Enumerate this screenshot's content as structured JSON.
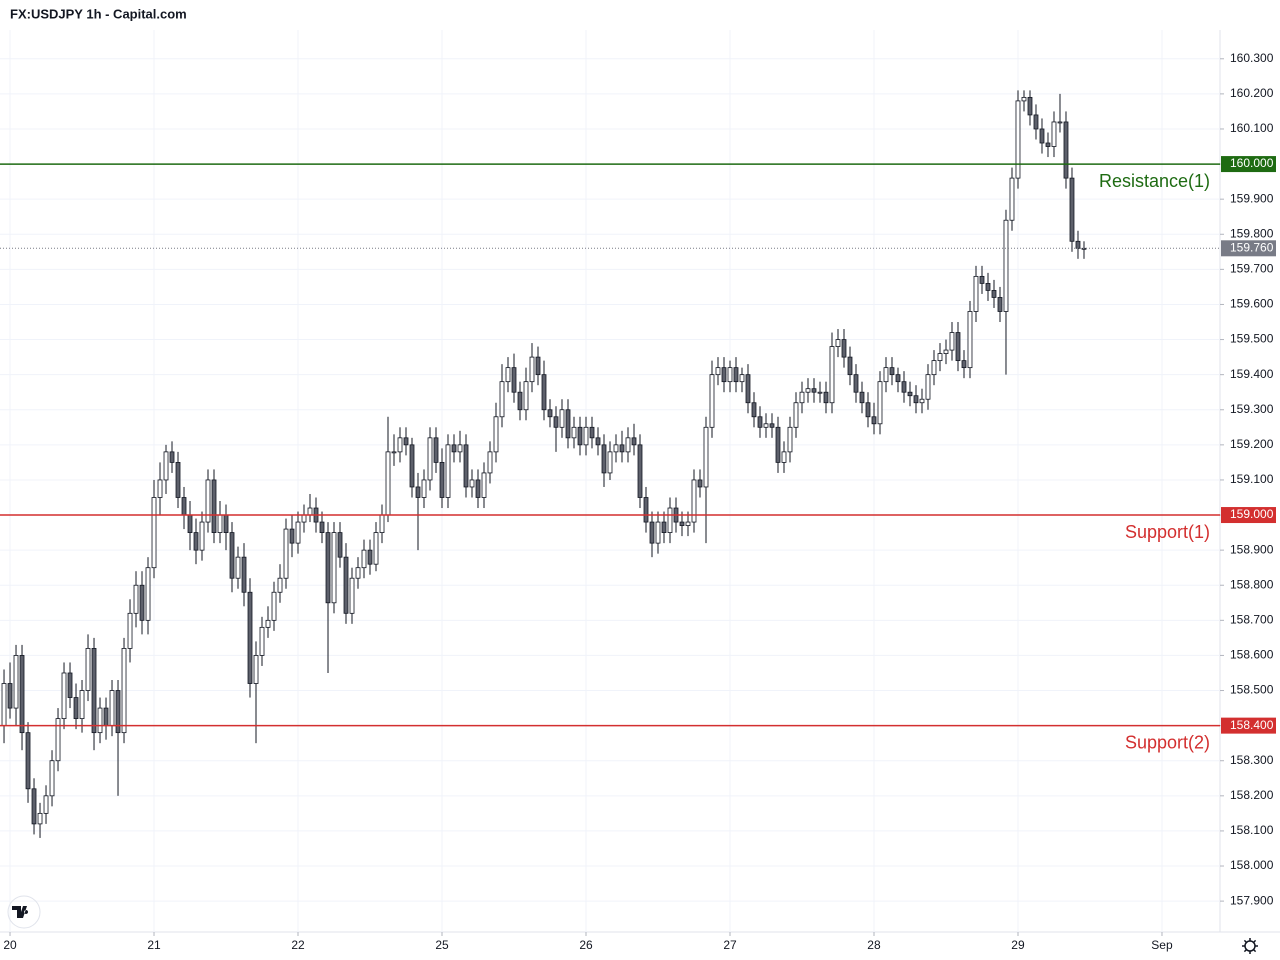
{
  "chart_data": {
    "type": "candlestick",
    "title": "FX:USDJPY 1h - Capital.com",
    "x": [
      0,
      1,
      2,
      3,
      4,
      5,
      6,
      7,
      8,
      9,
      10,
      11,
      12,
      13,
      14,
      15,
      16,
      17,
      18,
      19,
      20,
      21,
      22,
      23,
      24,
      25,
      26,
      27,
      28,
      29,
      30,
      31,
      32,
      33,
      34,
      35,
      36,
      37,
      38,
      39,
      40,
      41,
      42,
      43,
      44,
      45,
      46,
      47,
      48,
      49,
      50,
      51,
      52,
      53,
      54,
      55,
      56,
      57,
      58,
      59,
      60,
      61,
      62,
      63,
      64,
      65,
      66,
      67,
      68,
      69,
      70,
      71,
      72,
      73,
      74,
      75,
      76,
      77,
      78,
      79,
      80,
      81,
      82,
      83,
      84,
      85,
      86,
      87,
      88,
      89,
      90,
      91,
      92,
      93,
      94,
      95,
      96,
      97,
      98,
      99,
      100,
      101,
      102,
      103,
      104,
      105,
      106,
      107,
      108,
      109,
      110,
      111,
      112,
      113,
      114,
      115,
      116,
      117,
      118,
      119,
      120,
      121,
      122,
      123,
      124,
      125,
      126,
      127,
      128,
      129,
      130,
      131,
      132,
      133,
      134,
      135,
      136,
      137,
      138,
      139,
      140,
      141,
      142,
      143,
      144,
      145,
      146,
      147,
      148,
      149,
      150,
      151,
      152,
      153,
      154,
      155,
      156,
      157,
      158,
      159,
      160,
      161,
      162,
      163,
      164,
      165,
      166,
      167,
      168,
      169,
      170,
      171,
      172,
      173,
      174,
      175,
      176,
      177,
      178,
      179,
      180
    ],
    "open": [
      158.4,
      158.52,
      158.45,
      158.6,
      158.38,
      158.22,
      158.12,
      158.15,
      158.2,
      158.3,
      158.42,
      158.55,
      158.48,
      158.42,
      158.5,
      158.62,
      158.38,
      158.45,
      158.4,
      158.5,
      158.38,
      158.62,
      158.72,
      158.8,
      158.7,
      158.85,
      159.05,
      159.1,
      159.18,
      159.15,
      159.05,
      159.0,
      158.95,
      158.9,
      158.98,
      159.1,
      158.95,
      159.0,
      158.95,
      158.82,
      158.88,
      158.78,
      158.52,
      158.6,
      158.68,
      158.7,
      158.78,
      158.82,
      158.96,
      158.92,
      158.98,
      159.0,
      159.02,
      158.98,
      158.95,
      158.75,
      158.95,
      158.88,
      158.72,
      158.82,
      158.85,
      158.9,
      158.86,
      158.95,
      159.0,
      159.18,
      159.18,
      159.22,
      159.2,
      159.08,
      159.05,
      159.1,
      159.22,
      159.15,
      159.05,
      159.2,
      159.18,
      159.2,
      159.08,
      159.1,
      159.05,
      159.12,
      159.18,
      159.28,
      159.38,
      159.42,
      159.35,
      159.3,
      159.38,
      159.45,
      159.4,
      159.3,
      159.28,
      159.25,
      159.3,
      159.22,
      159.25,
      159.2,
      159.25,
      159.22,
      159.2,
      159.12,
      159.18,
      159.2,
      159.18,
      159.22,
      159.2,
      159.05,
      158.98,
      158.92,
      158.98,
      158.95,
      159.02,
      158.98,
      158.97,
      158.98,
      159.1,
      159.08,
      159.25,
      159.4,
      159.42,
      159.38,
      159.42,
      159.38,
      159.4,
      159.32,
      159.28,
      159.25,
      159.26,
      159.25,
      159.15,
      159.18,
      159.25,
      159.32,
      159.35,
      159.36,
      159.35,
      159.35,
      159.32,
      159.48,
      159.5,
      159.45,
      159.4,
      159.35,
      159.32,
      159.28,
      159.26,
      159.38,
      159.42,
      159.4,
      159.38,
      159.35,
      159.34,
      159.32,
      159.33,
      159.4,
      159.44,
      159.46,
      159.47,
      159.52,
      159.44,
      159.42,
      159.58,
      159.68,
      159.66,
      159.64,
      159.62,
      159.58,
      159.84,
      159.96,
      160.18,
      160.19,
      160.14,
      160.1,
      160.06,
      160.05,
      160.12,
      160.12,
      159.96,
      159.78,
      159.76
    ],
    "high": [
      158.56,
      158.58,
      158.63,
      158.63,
      158.41,
      158.25,
      158.18,
      158.23,
      158.33,
      158.45,
      158.58,
      158.58,
      158.52,
      158.53,
      158.66,
      158.65,
      158.48,
      158.48,
      158.53,
      158.53,
      158.65,
      158.76,
      158.84,
      158.84,
      158.88,
      159.1,
      159.15,
      159.2,
      159.21,
      159.18,
      159.08,
      159.04,
      158.99,
      159.01,
      159.13,
      159.13,
      159.04,
      159.03,
      158.98,
      158.91,
      158.92,
      158.82,
      158.64,
      158.71,
      158.74,
      158.81,
      158.86,
      158.99,
      159.0,
      159.01,
      159.03,
      159.06,
      159.05,
      159.01,
      158.98,
      158.98,
      158.98,
      158.92,
      158.85,
      158.88,
      158.93,
      158.93,
      158.98,
      159.03,
      159.28,
      159.23,
      159.25,
      159.25,
      159.22,
      159.12,
      159.13,
      159.25,
      159.25,
      159.19,
      159.23,
      159.23,
      159.24,
      159.23,
      159.13,
      159.13,
      159.15,
      159.21,
      159.32,
      159.43,
      159.45,
      159.46,
      159.38,
      159.42,
      159.49,
      159.48,
      159.44,
      159.33,
      159.31,
      159.33,
      159.33,
      159.28,
      159.28,
      159.28,
      159.28,
      159.25,
      159.23,
      159.21,
      159.23,
      159.24,
      159.25,
      159.26,
      159.23,
      159.08,
      159.01,
      159.01,
      159.01,
      159.05,
      159.05,
      159.01,
      159.01,
      159.13,
      159.13,
      159.28,
      159.44,
      159.45,
      159.45,
      159.44,
      159.45,
      159.42,
      159.43,
      159.35,
      159.31,
      159.29,
      159.29,
      159.28,
      159.21,
      159.28,
      159.35,
      159.38,
      159.39,
      159.39,
      159.38,
      159.38,
      159.52,
      159.53,
      159.53,
      159.48,
      159.43,
      159.38,
      159.35,
      159.32,
      159.41,
      159.45,
      159.45,
      159.42,
      159.41,
      159.38,
      159.37,
      159.36,
      159.43,
      159.47,
      159.49,
      159.5,
      159.55,
      159.55,
      159.47,
      159.61,
      159.71,
      159.71,
      159.69,
      159.67,
      159.65,
      159.87,
      159.99,
      160.21,
      160.21,
      160.21,
      160.17,
      160.13,
      160.09,
      160.15,
      160.2,
      160.15,
      159.99,
      159.81,
      159.78
    ],
    "low": [
      158.35,
      158.42,
      158.4,
      158.33,
      158.18,
      158.09,
      158.08,
      158.12,
      158.17,
      158.27,
      158.39,
      158.45,
      158.39,
      158.38,
      158.47,
      158.33,
      158.35,
      158.36,
      158.37,
      158.2,
      158.35,
      158.58,
      158.68,
      158.66,
      158.66,
      158.82,
      159.0,
      159.06,
      159.12,
      159.02,
      158.96,
      158.9,
      158.86,
      158.87,
      158.95,
      158.92,
      158.92,
      158.9,
      158.78,
      158.79,
      158.74,
      158.48,
      158.35,
      158.57,
      158.65,
      158.67,
      158.75,
      158.79,
      158.88,
      158.89,
      158.95,
      158.98,
      158.95,
      158.92,
      158.55,
      158.72,
      158.85,
      158.69,
      158.69,
      158.79,
      158.82,
      158.83,
      158.84,
      158.92,
      158.98,
      159.14,
      159.15,
      159.17,
      159.05,
      158.9,
      159.02,
      159.07,
      159.12,
      159.02,
      159.02,
      159.15,
      159.15,
      159.05,
      159.05,
      159.02,
      159.02,
      159.09,
      159.15,
      159.25,
      159.35,
      159.32,
      159.27,
      159.27,
      159.35,
      159.37,
      159.27,
      159.25,
      159.18,
      159.22,
      159.19,
      159.19,
      159.17,
      159.17,
      159.19,
      159.17,
      159.08,
      159.1,
      159.15,
      159.15,
      159.15,
      159.17,
      159.02,
      158.95,
      158.88,
      158.89,
      158.92,
      158.92,
      158.95,
      158.94,
      158.94,
      158.95,
      159.05,
      158.92,
      159.22,
      159.37,
      159.35,
      159.35,
      159.35,
      159.35,
      159.29,
      159.25,
      159.22,
      159.22,
      159.22,
      159.12,
      159.12,
      159.15,
      159.22,
      159.29,
      159.32,
      159.32,
      159.32,
      159.29,
      159.29,
      159.45,
      159.42,
      159.37,
      159.32,
      159.29,
      159.25,
      159.23,
      159.23,
      159.35,
      159.37,
      159.35,
      159.32,
      159.31,
      159.29,
      159.29,
      159.3,
      159.37,
      159.41,
      159.43,
      159.44,
      159.41,
      159.39,
      159.39,
      159.55,
      159.63,
      159.61,
      159.59,
      159.55,
      159.4,
      159.81,
      159.93,
      160.15,
      160.11,
      160.07,
      160.03,
      160.02,
      160.02,
      160.09,
      159.93,
      159.75,
      159.73,
      159.73
    ],
    "close": [
      158.52,
      158.45,
      158.6,
      158.38,
      158.22,
      158.12,
      158.15,
      158.2,
      158.3,
      158.42,
      158.55,
      158.48,
      158.42,
      158.5,
      158.62,
      158.38,
      158.45,
      158.4,
      158.5,
      158.38,
      158.62,
      158.72,
      158.8,
      158.7,
      158.85,
      159.05,
      159.1,
      159.18,
      159.15,
      159.05,
      159.0,
      158.95,
      158.9,
      158.98,
      159.1,
      158.95,
      159.0,
      158.95,
      158.82,
      158.88,
      158.78,
      158.52,
      158.6,
      158.68,
      158.7,
      158.78,
      158.82,
      158.96,
      158.92,
      158.98,
      159.0,
      159.02,
      158.98,
      158.95,
      158.75,
      158.95,
      158.88,
      158.72,
      158.82,
      158.85,
      158.9,
      158.86,
      158.95,
      159.0,
      159.18,
      159.18,
      159.22,
      159.2,
      159.08,
      159.05,
      159.1,
      159.22,
      159.15,
      159.05,
      159.2,
      159.18,
      159.2,
      159.08,
      159.1,
      159.05,
      159.12,
      159.18,
      159.28,
      159.38,
      159.42,
      159.35,
      159.3,
      159.38,
      159.45,
      159.4,
      159.3,
      159.28,
      159.25,
      159.3,
      159.22,
      159.25,
      159.2,
      159.25,
      159.22,
      159.2,
      159.12,
      159.18,
      159.2,
      159.18,
      159.22,
      159.2,
      159.05,
      158.98,
      158.92,
      158.98,
      158.95,
      159.02,
      158.98,
      158.97,
      158.98,
      159.1,
      159.08,
      159.25,
      159.4,
      159.42,
      159.38,
      159.42,
      159.38,
      159.4,
      159.32,
      159.28,
      159.25,
      159.26,
      159.25,
      159.15,
      159.18,
      159.25,
      159.32,
      159.35,
      159.36,
      159.35,
      159.35,
      159.32,
      159.48,
      159.5,
      159.45,
      159.4,
      159.35,
      159.32,
      159.28,
      159.26,
      159.38,
      159.42,
      159.4,
      159.38,
      159.35,
      159.34,
      159.32,
      159.33,
      159.4,
      159.44,
      159.46,
      159.47,
      159.52,
      159.44,
      159.42,
      159.58,
      159.68,
      159.66,
      159.64,
      159.62,
      159.58,
      159.84,
      159.96,
      160.18,
      160.19,
      160.14,
      160.1,
      160.06,
      160.05,
      160.12,
      160.12,
      159.96,
      159.78,
      159.76,
      159.76
    ],
    "up_color": "#ffffff",
    "down_color": "#5d606b",
    "wick_color": "#131722",
    "xlim": [
      -0.67,
      202.67
    ],
    "xticks": [
      {
        "value": 1,
        "label": "20"
      },
      {
        "value": 25,
        "label": "21"
      },
      {
        "value": 49,
        "label": "22"
      },
      {
        "value": 73,
        "label": "25"
      },
      {
        "value": 97,
        "label": "26"
      },
      {
        "value": 121,
        "label": "27"
      },
      {
        "value": 145,
        "label": "28"
      },
      {
        "value": 169,
        "label": "29"
      },
      {
        "value": 193,
        "label": "Sep"
      }
    ],
    "ylim": [
      157.812,
      160.382
    ],
    "yticks": [
      {
        "value": 157.9,
        "label": "157.900"
      },
      {
        "value": 158.0,
        "label": "158.000"
      },
      {
        "value": 158.1,
        "label": "158.100"
      },
      {
        "value": 158.2,
        "label": "158.200"
      },
      {
        "value": 158.3,
        "label": "158.300"
      },
      {
        "value": 158.4,
        "label": "158.400"
      },
      {
        "value": 158.5,
        "label": "158.500"
      },
      {
        "value": 158.6,
        "label": "158.600"
      },
      {
        "value": 158.7,
        "label": "158.700"
      },
      {
        "value": 158.8,
        "label": "158.800"
      },
      {
        "value": 158.9,
        "label": "158.900"
      },
      {
        "value": 159.0,
        "label": "159.000"
      },
      {
        "value": 159.1,
        "label": "159.100"
      },
      {
        "value": 159.2,
        "label": "159.200"
      },
      {
        "value": 159.3,
        "label": "159.300"
      },
      {
        "value": 159.4,
        "label": "159.400"
      },
      {
        "value": 159.5,
        "label": "159.500"
      },
      {
        "value": 159.6,
        "label": "159.600"
      },
      {
        "value": 159.7,
        "label": "159.700"
      },
      {
        "value": 159.8,
        "label": "159.800"
      },
      {
        "value": 159.9,
        "label": "159.900"
      },
      {
        "value": 160.0,
        "label": "160.000"
      },
      {
        "value": 160.1,
        "label": "160.100"
      },
      {
        "value": 160.2,
        "label": "160.200"
      },
      {
        "value": 160.3,
        "label": "160.300"
      }
    ],
    "grid": true,
    "levels": [
      {
        "name": "Resistance(1)",
        "value": 160.0,
        "label": "160.000",
        "color": "#1e6b12"
      },
      {
        "name": "Support(1)",
        "value": 159.0,
        "label": "159.000",
        "color": "#d32f2f"
      },
      {
        "name": "Support(2)",
        "value": 158.4,
        "label": "158.400",
        "color": "#d32f2f"
      }
    ],
    "last_price": {
      "value": 159.76,
      "label": "159.760",
      "color": "#787b86"
    }
  }
}
